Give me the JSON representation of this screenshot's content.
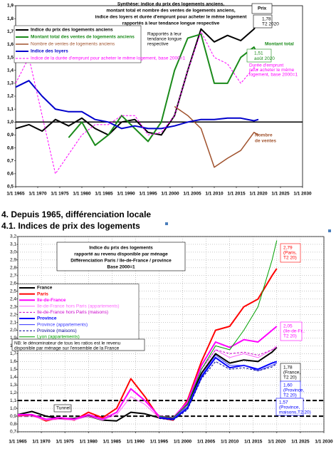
{
  "headings": [
    "4. Depuis 1965, différenciation locale",
    "4.1. Indices de prix des logements"
  ],
  "chart_data": [
    {
      "type": "line",
      "title": [
        "Synthèse: indice du prix des logements anciens,",
        "montant total et nombre des ventes de logements anciens,",
        "indice des loyers et durée d'emprunt pour acheter le même logement",
        "rapportés à leur tendance longue respective"
      ],
      "x": [
        1965,
        1968,
        1971,
        1974,
        1977,
        1980,
        1983,
        1986,
        1989,
        1992,
        1995,
        1998,
        2001,
        2004,
        2007,
        2010,
        2013,
        2016,
        2019,
        2020
      ],
      "xlim": [
        1965,
        2030
      ],
      "xticks": [
        {
          "value": 1965,
          "label": "1/1 1965"
        },
        {
          "value": 1970,
          "label": "1/1 1970"
        },
        {
          "value": 1975,
          "label": "1/1 1975"
        },
        {
          "value": 1980,
          "label": "1/1 1980"
        },
        {
          "value": 1985,
          "label": "1/1 1985"
        },
        {
          "value": 1990,
          "label": "1/1 1990"
        },
        {
          "value": 1995,
          "label": "1/1 1995"
        },
        {
          "value": 2000,
          "label": "1/1 2000"
        },
        {
          "value": 2005,
          "label": "1/1 2005"
        },
        {
          "value": 2010,
          "label": "1/1 2010"
        },
        {
          "value": 2015,
          "label": "1/1 2015"
        },
        {
          "value": 2020,
          "label": "1/1 2020"
        },
        {
          "value": 2025,
          "label": "1/1 2025"
        },
        {
          "value": 2030,
          "label": "1/1 2030"
        }
      ],
      "ylim": [
        0.5,
        1.9
      ],
      "yticks": [
        {
          "value": 0.5,
          "label": "0,5"
        },
        {
          "value": 0.6,
          "label": "0,6"
        },
        {
          "value": 0.7,
          "label": "0,7"
        },
        {
          "value": 0.8,
          "label": "0,8"
        },
        {
          "value": 0.9,
          "label": "0,9"
        },
        {
          "value": 1,
          "label": "1,0"
        },
        {
          "value": 1.1,
          "label": "1,1"
        },
        {
          "value": 1.2,
          "label": "1,2"
        },
        {
          "value": 1.3,
          "label": "1,3"
        },
        {
          "value": 1.4,
          "label": "1,4"
        },
        {
          "value": 1.5,
          "label": "1,5"
        },
        {
          "value": 1.6,
          "label": "1,6"
        },
        {
          "value": 1.7,
          "label": "1,7"
        },
        {
          "value": 1.8,
          "label": "1,8"
        },
        {
          "value": 1.9,
          "label": "1,9"
        }
      ],
      "grid": false,
      "reference_lines": [
        1
      ],
      "series": [
        {
          "name": "Indice du prix des logements anciens",
          "color": "#000000",
          "width": 2,
          "values": [
            0.95,
            0.98,
            0.93,
            1.02,
            0.97,
            1.03,
            0.95,
            0.9,
            1.0,
            1.02,
            0.92,
            0.9,
            1.05,
            1.4,
            1.72,
            1.62,
            1.67,
            1.63,
            1.72,
            1.78
          ]
        },
        {
          "name": "Montant total des ventes de logements anciens",
          "color": "#1a8a1a",
          "width": 2,
          "values": [
            null,
            null,
            null,
            null,
            0.88,
            1.0,
            0.82,
            0.9,
            1.05,
            0.95,
            0.85,
            1.0,
            1.4,
            1.65,
            1.68,
            1.3,
            1.3,
            1.5,
            1.58,
            1.51
          ]
        },
        {
          "name": "Nombre de ventes de logements anciens",
          "color": "#a0522d",
          "width": 1.5,
          "values": [
            null,
            null,
            null,
            null,
            null,
            null,
            null,
            null,
            null,
            null,
            null,
            null,
            1.12,
            1.05,
            0.95,
            0.65,
            0.72,
            0.78,
            0.92,
            0.9
          ]
        },
        {
          "name": "Indice des loyers",
          "color": "#0000cc",
          "width": 2,
          "values": [
            1.27,
            1.32,
            1.2,
            1.1,
            1.08,
            1.08,
            1.02,
            1.0,
            0.95,
            0.97,
            0.95,
            0.95,
            0.97,
            1.0,
            1.02,
            1.02,
            1.03,
            1.03,
            1.01,
            1.02
          ]
        },
        {
          "name": "Indice de la durée d'emprunt pour acheter le même logement, base 2000=1",
          "color": "#ff00ff",
          "width": 1,
          "dashed": true,
          "values": [
            1.3,
            1.5,
            1.05,
            0.6,
            0.75,
            0.9,
            0.98,
            0.98,
            1.05,
            1.05,
            0.9,
            0.92,
            1.05,
            1.4,
            1.7,
            1.5,
            1.45,
            1.3,
            1.42,
            1.4
          ]
        }
      ],
      "annotations": [
        [
          "Prix"
        ],
        [
          "1,78",
          "T2 2020"
        ],
        [
          "Montant total"
        ],
        [
          "1,51",
          "août 2020"
        ],
        [
          "Rapportés à leur",
          "tendance longue",
          "respective"
        ],
        [
          "Durée d'emprunt",
          "pour acheter le même",
          "logement, base 2000=1"
        ],
        [
          "Nombre",
          "de ventes"
        ]
      ]
    },
    {
      "type": "line",
      "title": [
        "Indice du prix des logements",
        "rapporté au revenu disponible par ménage",
        "Différenciation Paris / Ile-de-France / province",
        "Base 2000=1"
      ],
      "x": [
        1965,
        1968,
        1971,
        1974,
        1977,
        1980,
        1983,
        1986,
        1989,
        1992,
        1995,
        1998,
        2001,
        2004,
        2007,
        2010,
        2013,
        2016,
        2019,
        2020
      ],
      "xlim": [
        1965,
        2030
      ],
      "xticks": [
        {
          "value": 1965,
          "label": "1/1 1965"
        },
        {
          "value": 1970,
          "label": "1/1 1970"
        },
        {
          "value": 1975,
          "label": "1/1 1975"
        },
        {
          "value": 1980,
          "label": "1/1 1980"
        },
        {
          "value": 1985,
          "label": "1/1 1985"
        },
        {
          "value": 1990,
          "label": "1/1 1990"
        },
        {
          "value": 1995,
          "label": "1/1 1995"
        },
        {
          "value": 2000,
          "label": "1/1 2000"
        },
        {
          "value": 2005,
          "label": "1/1 2005"
        },
        {
          "value": 2010,
          "label": "1/1 2010"
        },
        {
          "value": 2015,
          "label": "1/1 2015"
        },
        {
          "value": 2020,
          "label": "1/1 2020"
        },
        {
          "value": 2025,
          "label": "1/1 2025"
        },
        {
          "value": 2030,
          "label": "1/1 2030"
        }
      ],
      "ylim": [
        0.7,
        3.2
      ],
      "yticks": [
        {
          "value": 0.7,
          "label": "0,7"
        },
        {
          "value": 0.8,
          "label": "0,8"
        },
        {
          "value": 0.9,
          "label": "0,9"
        },
        {
          "value": 1,
          "label": "1,0"
        },
        {
          "value": 1.1,
          "label": "1,1"
        },
        {
          "value": 1.2,
          "label": "1,2"
        },
        {
          "value": 1.3,
          "label": "1,3"
        },
        {
          "value": 1.4,
          "label": "1,4"
        },
        {
          "value": 1.5,
          "label": "1,5"
        },
        {
          "value": 1.6,
          "label": "1,6"
        },
        {
          "value": 1.7,
          "label": "1,7"
        },
        {
          "value": 1.8,
          "label": "1,8"
        },
        {
          "value": 1.9,
          "label": "1,9"
        },
        {
          "value": 2,
          "label": "2,0"
        },
        {
          "value": 2.1,
          "label": "2,1"
        },
        {
          "value": 2.2,
          "label": "2,2"
        },
        {
          "value": 2.3,
          "label": "2,3"
        },
        {
          "value": 2.4,
          "label": "2,4"
        },
        {
          "value": 2.5,
          "label": "2,5"
        },
        {
          "value": 2.6,
          "label": "2,6"
        },
        {
          "value": 2.7,
          "label": "2,7"
        },
        {
          "value": 2.8,
          "label": "2,8"
        },
        {
          "value": 2.9,
          "label": "2,9"
        },
        {
          "value": 3,
          "label": "3,0"
        },
        {
          "value": 3.1,
          "label": "3,1"
        },
        {
          "value": 3.2,
          "label": "3,2"
        }
      ],
      "grid": true,
      "reference_lines": [
        0.9,
        1.1
      ],
      "series": [
        {
          "name": "France",
          "color": "#000000",
          "width": 2,
          "values": [
            0.92,
            0.96,
            0.9,
            0.87,
            0.87,
            0.9,
            0.85,
            0.84,
            0.95,
            0.93,
            0.88,
            0.87,
            1.05,
            1.45,
            1.7,
            1.58,
            1.62,
            1.6,
            1.72,
            1.78
          ]
        },
        {
          "name": "Paris",
          "color": "#ff0000",
          "width": 2,
          "values": [
            0.9,
            0.92,
            0.84,
            0.88,
            0.85,
            0.95,
            0.88,
            1.0,
            1.38,
            1.15,
            0.88,
            0.85,
            1.1,
            1.6,
            2.0,
            2.05,
            2.3,
            2.4,
            2.7,
            2.79
          ]
        },
        {
          "name": "Ile-de-France",
          "color": "#ff00ff",
          "width": 2,
          "values": [
            0.92,
            0.92,
            0.86,
            0.88,
            0.86,
            0.92,
            0.86,
            0.95,
            1.25,
            1.1,
            0.9,
            0.88,
            1.08,
            1.55,
            1.85,
            1.78,
            1.88,
            1.85,
            2.0,
            2.05
          ]
        },
        {
          "name": "Ile-de-France hors Paris (appartements)",
          "color": "#ff66ff",
          "width": 1,
          "values": [
            0.9,
            0.9,
            0.85,
            0.86,
            0.85,
            0.9,
            0.85,
            0.92,
            1.15,
            1.05,
            0.88,
            0.86,
            1.05,
            1.5,
            1.75,
            1.65,
            1.7,
            1.65,
            1.75,
            1.8
          ]
        },
        {
          "name": "Ile-de-France hors Paris (maisons)",
          "color": "#cc00cc",
          "width": 1,
          "dashed": true,
          "values": [
            null,
            null,
            null,
            null,
            null,
            null,
            null,
            null,
            null,
            null,
            0.9,
            0.88,
            1.05,
            1.5,
            1.75,
            1.7,
            1.72,
            1.68,
            1.75,
            1.78
          ]
        },
        {
          "name": "Province",
          "color": "#0000ff",
          "width": 2,
          "values": [
            null,
            null,
            null,
            null,
            null,
            null,
            null,
            null,
            null,
            null,
            0.88,
            0.86,
            1.0,
            1.4,
            1.65,
            1.52,
            1.55,
            1.5,
            1.58,
            1.6
          ]
        },
        {
          "name": "Province (appartements)",
          "color": "#3333ff",
          "width": 1,
          "values": [
            null,
            null,
            null,
            null,
            null,
            null,
            null,
            null,
            null,
            null,
            0.9,
            0.88,
            1.02,
            1.42,
            1.68,
            1.55,
            1.55,
            1.48,
            1.55,
            1.58
          ]
        },
        {
          "name": "Province (maisons)",
          "color": "#000099",
          "width": 1,
          "dashed": true,
          "values": [
            null,
            null,
            null,
            null,
            null,
            null,
            null,
            null,
            null,
            null,
            0.87,
            0.85,
            0.98,
            1.38,
            1.6,
            1.5,
            1.52,
            1.48,
            1.53,
            1.57
          ]
        },
        {
          "name": "Lyon (appartements)",
          "color": "#00a000",
          "width": 1,
          "values": [
            null,
            null,
            null,
            null,
            null,
            null,
            null,
            null,
            null,
            null,
            0.9,
            0.88,
            1.05,
            1.5,
            1.8,
            1.75,
            2.0,
            2.3,
            2.9,
            3.15
          ]
        }
      ],
      "annotations": [
        [
          "2,79",
          "(Paris,",
          "T2 20)"
        ],
        [
          "2,05",
          "(Ile-de-Fr.,",
          "T2 20)"
        ],
        [
          "1,78",
          "(France,",
          "T2 20)"
        ],
        [
          "1,60",
          "(Province,",
          "T2 20)"
        ],
        [
          "1,57",
          "(Province,",
          "maisons,T2 20)"
        ],
        [
          "Tunnel"
        ],
        [
          "NB: le dénominateur de tous les ratios est le revenu",
          "disponible par ménage sur l'ensemble de la France"
        ]
      ]
    }
  ]
}
